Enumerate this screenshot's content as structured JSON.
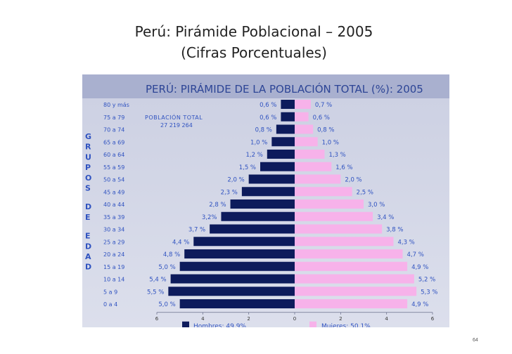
{
  "slide": {
    "title": "Perú: Pirámide Poblacional – 2005",
    "subtitle": "(Cifras Porcentuales)",
    "page_number": "64"
  },
  "chart_data": {
    "type": "bar",
    "orientation": "horizontal-population-pyramid",
    "title": "PERÚ: PIRÁMIDE DE LA POBLACIÓN TOTAL (%): 2005",
    "annotation": [
      "POBLACIÓN TOTAL",
      "27 219 264"
    ],
    "ylabel": "GRUPOS DE EDAD",
    "categories": [
      "80 y más",
      "75 a 79",
      "70 a 74",
      "65 a 69",
      "60 a 64",
      "55 a 59",
      "50 a 54",
      "45 a 49",
      "40 a 44",
      "35 a 39",
      "30 a 34",
      "25 a 29",
      "20 a 24",
      "15 a 19",
      "10 a 14",
      "5 a 9",
      "0 a 4"
    ],
    "series": [
      {
        "name": "Hombres: 49,9%",
        "side": "left",
        "color": "#0d1b5c",
        "values": [
          0.6,
          0.6,
          0.8,
          1.0,
          1.2,
          1.5,
          2.0,
          2.3,
          2.8,
          3.2,
          3.7,
          4.4,
          4.8,
          5.0,
          5.4,
          5.5,
          5.0
        ],
        "labels": [
          "0,6 %",
          "0,6 %",
          "0,8 %",
          "1,0 %",
          "1,2 %",
          "1,5 %",
          "2,0 %",
          "2,3 %",
          "2,8 %",
          "3,2%",
          "3,7 %",
          "4,4 %",
          "4,8 %",
          "5,0 %",
          "5,4 %",
          "5,5 %",
          "5,0 %"
        ]
      },
      {
        "name": "Mujeres: 50,1%",
        "side": "right",
        "color": "#f7b2ea",
        "values": [
          0.7,
          0.6,
          0.8,
          1.0,
          1.3,
          1.6,
          2.0,
          2.5,
          3.0,
          3.4,
          3.8,
          4.3,
          4.7,
          4.9,
          5.2,
          5.3,
          4.9
        ],
        "labels": [
          "0,7 %",
          "0,6 %",
          "0,8 %",
          "1,0 %",
          "1,3 %",
          "1,6 %",
          "2,0 %",
          "2,5 %",
          "3,0 %",
          "3,4 %",
          "3,8 %",
          "4,3 %",
          "4,7 %",
          "4,9 %",
          "5,2 %",
          "5,3 %",
          "4,9 %"
        ]
      }
    ],
    "xticks": [
      "6",
      "4",
      "2",
      "0",
      "2",
      "4",
      "6"
    ],
    "xlim": [
      -6,
      6
    ],
    "colors": {
      "label_blue": "#2f52c0",
      "panel": "#cfd3e5",
      "header": "#2d4596"
    }
  }
}
